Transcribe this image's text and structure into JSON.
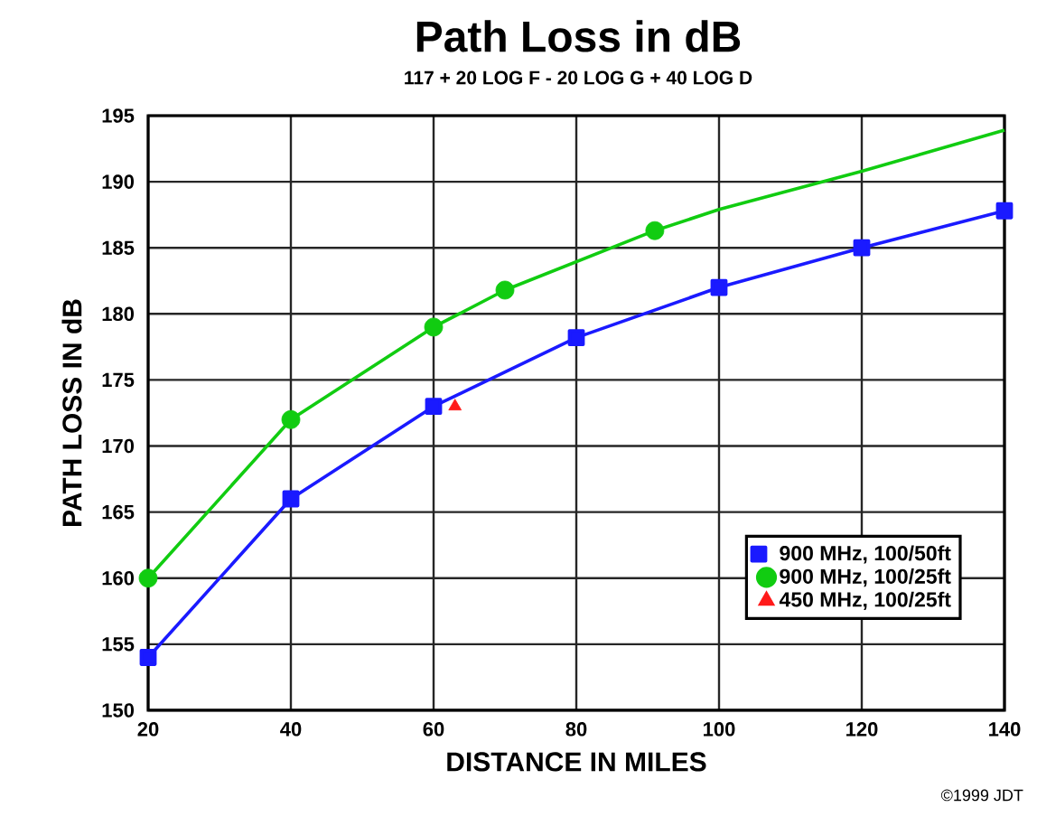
{
  "chart_data": {
    "type": "line",
    "title": "Path Loss in dB",
    "subtitle": "117 + 20 LOG F - 20 LOG G + 40 LOG D",
    "xlabel": "DISTANCE IN MILES",
    "ylabel": "PATH LOSS IN dB",
    "annotations": [
      "©1999 JDT"
    ],
    "xlim": [
      20,
      140
    ],
    "xticks": [
      20,
      40,
      60,
      80,
      100,
      120,
      140
    ],
    "ylim": [
      150,
      195
    ],
    "yticks": [
      150,
      155,
      160,
      165,
      170,
      175,
      180,
      185,
      190,
      195
    ],
    "grid": true,
    "legend": "bottom right",
    "series": [
      {
        "name": "900 MHz, 100/50ft",
        "color": "#1a1aff",
        "marker": "square",
        "x": [
          20,
          40,
          60,
          80,
          100,
          120,
          140
        ],
        "values": [
          154,
          166,
          173,
          178.2,
          182,
          185,
          187.8
        ]
      },
      {
        "color": "#11cc11",
        "marker": "none",
        "x": [
          20,
          40,
          60,
          70,
          91,
          100,
          120,
          140
        ],
        "values": [
          160,
          172,
          179,
          181.8,
          186.3,
          187.9,
          190.8,
          193.9
        ]
      },
      {
        "name": "900 MHz, 100/25ft",
        "type": "scatter",
        "color": "#11cc11",
        "marker": "circle",
        "x": [
          20,
          40,
          60,
          70,
          91
        ],
        "values": [
          160,
          172,
          179,
          181.8,
          186.3
        ]
      },
      {
        "name": "450 MHz, 100/25ft",
        "type": "scatter",
        "color": "#ff1a1a",
        "marker": "triangle",
        "x": [
          63
        ],
        "values": [
          173
        ]
      }
    ]
  }
}
